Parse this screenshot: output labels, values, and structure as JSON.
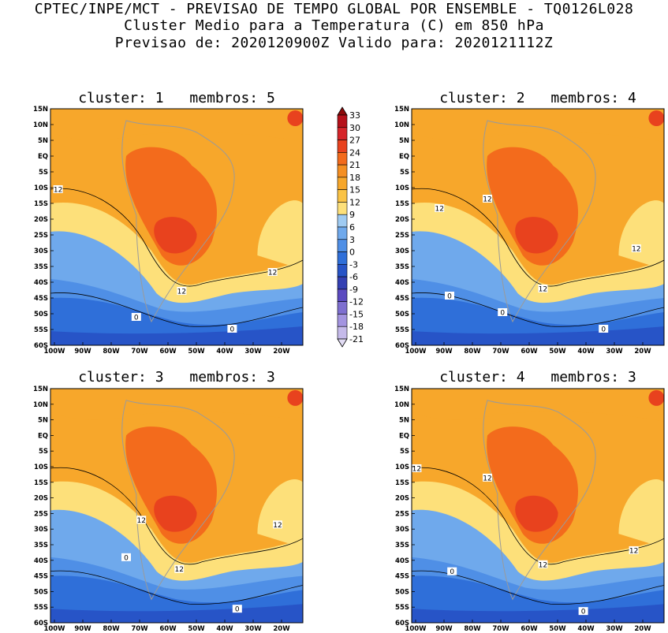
{
  "header": {
    "line1": "CPTEC/INPE/MCT - PREVISAO DE TEMPO GLOBAL POR ENSEMBLE - TQ0126L028",
    "line2": "Cluster Medio para a Temperatura (C) em 850 hPa",
    "line3": "Previsao de: 2020120900Z   Valido para: 2020121112Z"
  },
  "panels": [
    {
      "cluster_label": "cluster:",
      "cluster": "1",
      "members_label": "membros:",
      "members": "5",
      "contour_labels": [
        "12",
        "12",
        "12",
        "0",
        "0"
      ]
    },
    {
      "cluster_label": "cluster:",
      "cluster": "2",
      "members_label": "membros:",
      "members": "4",
      "contour_labels": [
        "12",
        "12",
        "12",
        "12",
        "0",
        "0",
        "0"
      ]
    },
    {
      "cluster_label": "cluster:",
      "cluster": "3",
      "members_label": "membros:",
      "members": "3",
      "contour_labels": [
        "12",
        "12",
        "12",
        "0",
        "0"
      ]
    },
    {
      "cluster_label": "cluster:",
      "cluster": "4",
      "members_label": "membros:",
      "members": "3",
      "contour_labels": [
        "12",
        "12",
        "12",
        "12",
        "0",
        "0"
      ]
    }
  ],
  "axes": {
    "lat_labels": [
      "15N",
      "10N",
      "5N",
      "EQ",
      "5S",
      "10S",
      "15S",
      "20S",
      "25S",
      "30S",
      "35S",
      "40S",
      "45S",
      "50S",
      "55S",
      "60S"
    ],
    "lon_labels": [
      "100W",
      "90W",
      "80W",
      "70W",
      "60W",
      "50W",
      "40W",
      "30W",
      "20W"
    ]
  },
  "colorbar": {
    "labels": [
      "33",
      "30",
      "27",
      "24",
      "21",
      "18",
      "15",
      "12",
      "9",
      "6",
      "3",
      "0",
      "-3",
      "-6",
      "-9",
      "-12",
      "-15",
      "-18",
      "-21"
    ],
    "colors": [
      "#8c0a0a",
      "#b5111a",
      "#d6252a",
      "#e8421e",
      "#f36b1c",
      "#f58f22",
      "#f7a72b",
      "#fac345",
      "#fde07a",
      "#9fcbf2",
      "#6fa9ec",
      "#4f8fe6",
      "#2f6fd9",
      "#2754c7",
      "#3440b3",
      "#5b4ac0",
      "#7e6fd0",
      "#a394e0",
      "#c5baea",
      "#e2dcf4"
    ]
  }
}
